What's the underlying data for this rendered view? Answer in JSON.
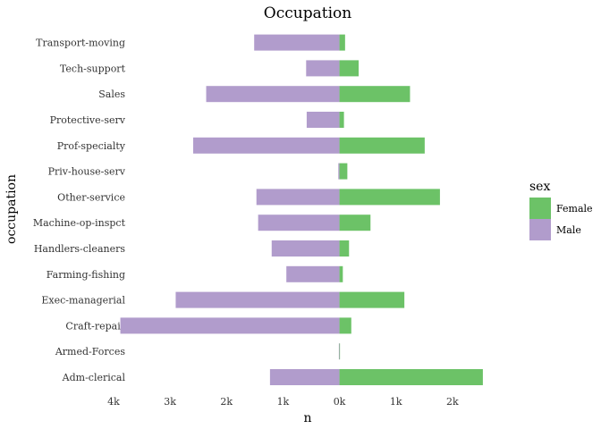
{
  "chart_data": {
    "type": "bar",
    "orientation": "horizontal",
    "diverging": true,
    "title": "Occupation",
    "xlabel": "n",
    "ylabel": "occupation",
    "categories": [
      "Adm-clerical",
      "Armed-Forces",
      "Craft-repair",
      "Exec-managerial",
      "Farming-fishing",
      "Handlers-cleaners",
      "Machine-op-inspct",
      "Other-service",
      "Priv-house-serv",
      "Prof-specialty",
      "Protective-serv",
      "Sales",
      "Tech-support",
      "Transport-moving"
    ],
    "series": [
      {
        "name": "Female",
        "color": "#6cc267",
        "values": [
          2540,
          0,
          210,
          1150,
          60,
          170,
          550,
          1780,
          140,
          1510,
          80,
          1250,
          340,
          100
        ]
      },
      {
        "name": "Male",
        "color": "#b19ccc",
        "values": [
          -1230,
          -10,
          -3880,
          -2900,
          -940,
          -1200,
          -1440,
          -1470,
          -20,
          -2590,
          -580,
          -2360,
          -590,
          -1510
        ]
      }
    ],
    "xlim": [
      -4000,
      2700
    ],
    "xticks": [
      -4000,
      -3000,
      -2000,
      -1000,
      0,
      1000,
      2000
    ],
    "xtick_labels": [
      "4k",
      "3k",
      "2k",
      "1k",
      "0k",
      "1k",
      "2k"
    ],
    "legend": {
      "title": "sex",
      "position": "right"
    },
    "grid": false
  }
}
